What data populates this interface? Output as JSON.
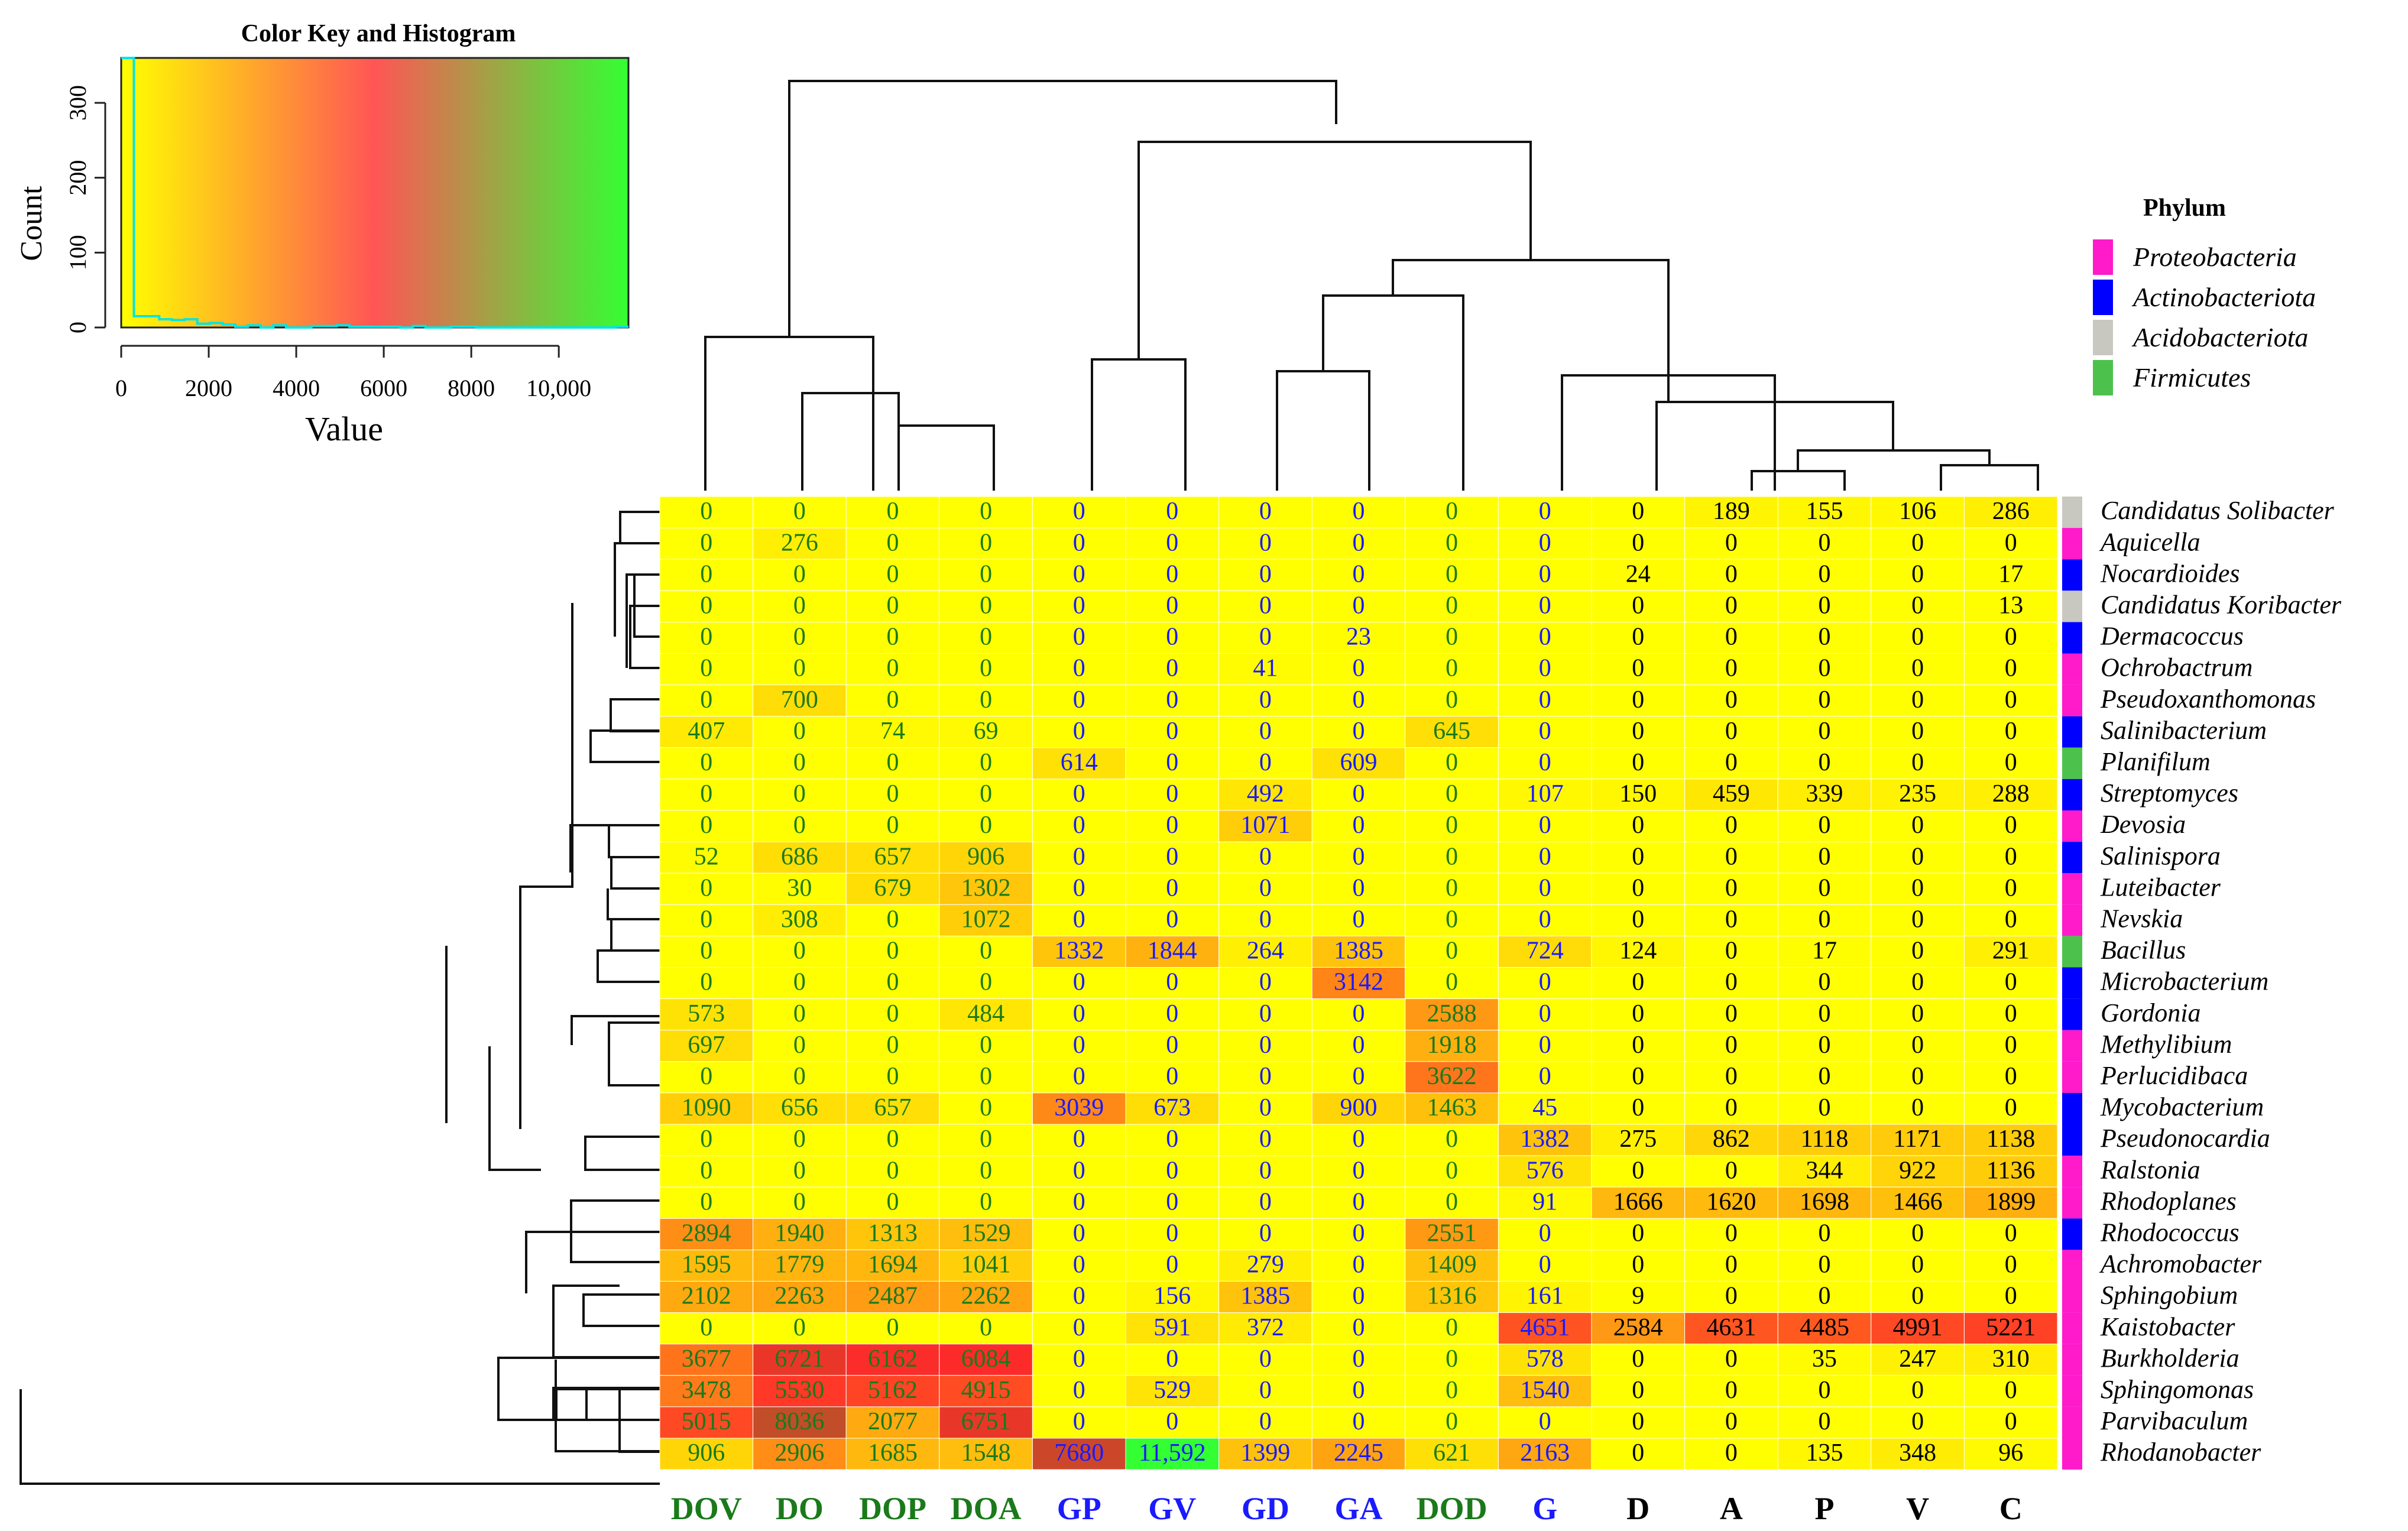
{
  "chart_data": {
    "type": "heatmap",
    "columns": [
      "DOV",
      "DO",
      "DOP",
      "DOA",
      "GP",
      "GV",
      "GD",
      "GA",
      "DOD",
      "G",
      "D",
      "A",
      "P",
      "V",
      "C"
    ],
    "column_label_colors": [
      "#1a7a1a",
      "#1a7a1a",
      "#1a7a1a",
      "#1a7a1a",
      "#1a1aff",
      "#1a1aff",
      "#1a1aff",
      "#1a1aff",
      "#1a7a1a",
      "#1a1aff",
      "#000000",
      "#000000",
      "#000000",
      "#000000",
      "#000000"
    ],
    "rows": [
      {
        "genus": "Candidatus Solibacter",
        "phylum": "Acidobacteriota",
        "values": [
          0,
          0,
          0,
          0,
          0,
          0,
          0,
          0,
          0,
          0,
          0,
          189,
          155,
          106,
          286
        ]
      },
      {
        "genus": "Aquicella",
        "phylum": "Proteobacteria",
        "values": [
          0,
          276,
          0,
          0,
          0,
          0,
          0,
          0,
          0,
          0,
          0,
          0,
          0,
          0,
          0
        ]
      },
      {
        "genus": "Nocardioides",
        "phylum": "Actinobacteriota",
        "values": [
          0,
          0,
          0,
          0,
          0,
          0,
          0,
          0,
          0,
          0,
          24,
          0,
          0,
          0,
          17
        ]
      },
      {
        "genus": "Candidatus Koribacter",
        "phylum": "Acidobacteriota",
        "values": [
          0,
          0,
          0,
          0,
          0,
          0,
          0,
          0,
          0,
          0,
          0,
          0,
          0,
          0,
          13
        ]
      },
      {
        "genus": "Dermacoccus",
        "phylum": "Actinobacteriota",
        "values": [
          0,
          0,
          0,
          0,
          0,
          0,
          0,
          23,
          0,
          0,
          0,
          0,
          0,
          0,
          0
        ]
      },
      {
        "genus": "Ochrobactrum",
        "phylum": "Proteobacteria",
        "values": [
          0,
          0,
          0,
          0,
          0,
          0,
          41,
          0,
          0,
          0,
          0,
          0,
          0,
          0,
          0
        ]
      },
      {
        "genus": "Pseudoxanthomonas",
        "phylum": "Proteobacteria",
        "values": [
          0,
          700,
          0,
          0,
          0,
          0,
          0,
          0,
          0,
          0,
          0,
          0,
          0,
          0,
          0
        ]
      },
      {
        "genus": "Salinibacterium",
        "phylum": "Actinobacteriota",
        "values": [
          407,
          0,
          74,
          69,
          0,
          0,
          0,
          0,
          645,
          0,
          0,
          0,
          0,
          0,
          0
        ]
      },
      {
        "genus": "Planifilum",
        "phylum": "Firmicutes",
        "values": [
          0,
          0,
          0,
          0,
          614,
          0,
          0,
          609,
          0,
          0,
          0,
          0,
          0,
          0,
          0
        ]
      },
      {
        "genus": "Streptomyces",
        "phylum": "Actinobacteriota",
        "values": [
          0,
          0,
          0,
          0,
          0,
          0,
          492,
          0,
          0,
          107,
          150,
          459,
          339,
          235,
          288
        ]
      },
      {
        "genus": "Devosia",
        "phylum": "Proteobacteria",
        "values": [
          0,
          0,
          0,
          0,
          0,
          0,
          1071,
          0,
          0,
          0,
          0,
          0,
          0,
          0,
          0
        ]
      },
      {
        "genus": "Salinispora",
        "phylum": "Actinobacteriota",
        "values": [
          52,
          686,
          657,
          906,
          0,
          0,
          0,
          0,
          0,
          0,
          0,
          0,
          0,
          0,
          0
        ]
      },
      {
        "genus": "Luteibacter",
        "phylum": "Proteobacteria",
        "values": [
          0,
          30,
          679,
          1302,
          0,
          0,
          0,
          0,
          0,
          0,
          0,
          0,
          0,
          0,
          0
        ]
      },
      {
        "genus": "Nevskia",
        "phylum": "Proteobacteria",
        "values": [
          0,
          308,
          0,
          1072,
          0,
          0,
          0,
          0,
          0,
          0,
          0,
          0,
          0,
          0,
          0
        ]
      },
      {
        "genus": "Bacillus",
        "phylum": "Firmicutes",
        "values": [
          0,
          0,
          0,
          0,
          1332,
          1844,
          264,
          1385,
          0,
          724,
          124,
          0,
          17,
          0,
          291
        ]
      },
      {
        "genus": "Microbacterium",
        "phylum": "Actinobacteriota",
        "values": [
          0,
          0,
          0,
          0,
          0,
          0,
          0,
          3142,
          0,
          0,
          0,
          0,
          0,
          0,
          0
        ]
      },
      {
        "genus": "Gordonia",
        "phylum": "Actinobacteriota",
        "values": [
          573,
          0,
          0,
          484,
          0,
          0,
          0,
          0,
          2588,
          0,
          0,
          0,
          0,
          0,
          0
        ]
      },
      {
        "genus": "Methylibium",
        "phylum": "Proteobacteria",
        "values": [
          697,
          0,
          0,
          0,
          0,
          0,
          0,
          0,
          1918,
          0,
          0,
          0,
          0,
          0,
          0
        ]
      },
      {
        "genus": "Perlucidibaca",
        "phylum": "Proteobacteria",
        "values": [
          0,
          0,
          0,
          0,
          0,
          0,
          0,
          0,
          3622,
          0,
          0,
          0,
          0,
          0,
          0
        ]
      },
      {
        "genus": "Mycobacterium",
        "phylum": "Actinobacteriota",
        "values": [
          1090,
          656,
          657,
          0,
          3039,
          673,
          0,
          900,
          1463,
          45,
          0,
          0,
          0,
          0,
          0
        ]
      },
      {
        "genus": "Pseudonocardia",
        "phylum": "Actinobacteriota",
        "values": [
          0,
          0,
          0,
          0,
          0,
          0,
          0,
          0,
          0,
          1382,
          275,
          862,
          1118,
          1171,
          1138
        ]
      },
      {
        "genus": "Ralstonia",
        "phylum": "Proteobacteria",
        "values": [
          0,
          0,
          0,
          0,
          0,
          0,
          0,
          0,
          0,
          576,
          0,
          0,
          344,
          922,
          1136
        ]
      },
      {
        "genus": "Rhodoplanes",
        "phylum": "Proteobacteria",
        "values": [
          0,
          0,
          0,
          0,
          0,
          0,
          0,
          0,
          0,
          91,
          1666,
          1620,
          1698,
          1466,
          1899
        ]
      },
      {
        "genus": "Rhodococcus",
        "phylum": "Actinobacteriota",
        "values": [
          2894,
          1940,
          1313,
          1529,
          0,
          0,
          0,
          0,
          2551,
          0,
          0,
          0,
          0,
          0,
          0
        ]
      },
      {
        "genus": "Achromobacter",
        "phylum": "Proteobacteria",
        "values": [
          1595,
          1779,
          1694,
          1041,
          0,
          0,
          279,
          0,
          1409,
          0,
          0,
          0,
          0,
          0,
          0
        ]
      },
      {
        "genus": "Sphingobium",
        "phylum": "Proteobacteria",
        "values": [
          2102,
          2263,
          2487,
          2262,
          0,
          156,
          1385,
          0,
          1316,
          161,
          9,
          0,
          0,
          0,
          0
        ]
      },
      {
        "genus": "Kaistobacter",
        "phylum": "Proteobacteria",
        "values": [
          0,
          0,
          0,
          0,
          0,
          591,
          372,
          0,
          0,
          4651,
          2584,
          4631,
          4485,
          4991,
          5221
        ]
      },
      {
        "genus": "Burkholderia",
        "phylum": "Proteobacteria",
        "values": [
          3677,
          6721,
          6162,
          6084,
          0,
          0,
          0,
          0,
          0,
          578,
          0,
          0,
          35,
          247,
          310
        ]
      },
      {
        "genus": "Sphingomonas",
        "phylum": "Proteobacteria",
        "values": [
          3478,
          5530,
          5162,
          4915,
          0,
          529,
          0,
          0,
          0,
          1540,
          0,
          0,
          0,
          0,
          0
        ]
      },
      {
        "genus": "Parvibaculum",
        "phylum": "Proteobacteria",
        "values": [
          5015,
          8036,
          2077,
          6751,
          0,
          0,
          0,
          0,
          0,
          0,
          0,
          0,
          0,
          0,
          0
        ]
      },
      {
        "genus": "Rhodanobacter",
        "phylum": "Proteobacteria",
        "values": [
          906,
          2906,
          1685,
          1548,
          7680,
          11592,
          1399,
          2245,
          621,
          2163,
          0,
          0,
          135,
          348,
          96
        ]
      }
    ],
    "cell_display_overrides": {
      "30-5": "11,592"
    },
    "color_key": {
      "title": "Color Key and Histogram",
      "xlabel": "Value",
      "ylabel": "Count",
      "xlim": [
        0,
        11592
      ],
      "ylim": [
        0,
        360
      ],
      "x_ticks": [
        0,
        2000,
        4000,
        6000,
        8000,
        10000
      ],
      "x_tick_labels": [
        "0",
        "2000",
        "4000",
        "6000",
        "8000",
        "10,000"
      ],
      "y_ticks": [
        0,
        100,
        200,
        300
      ],
      "y_tick_labels": [
        "0",
        "100",
        "200",
        "300"
      ],
      "gradient": [
        "#ffff00",
        "#ff5555",
        "#33ff33"
      ],
      "histogram_color": "#00e5e5"
    },
    "legend": {
      "title": "Phylum",
      "items": [
        {
          "label": "Proteobacteria",
          "color": "#ff1aca"
        },
        {
          "label": "Actinobacteriota",
          "color": "#0000ff"
        },
        {
          "label": "Acidobacteriota",
          "color": "#c8c8c0"
        },
        {
          "label": "Firmicutes",
          "color": "#4cc24c"
        }
      ]
    },
    "color_scale": {
      "min": 0,
      "mid": 6000,
      "max": 11592,
      "low": "#ffff00",
      "midColor": "#ff2a2a",
      "high": "#33ff33"
    }
  }
}
